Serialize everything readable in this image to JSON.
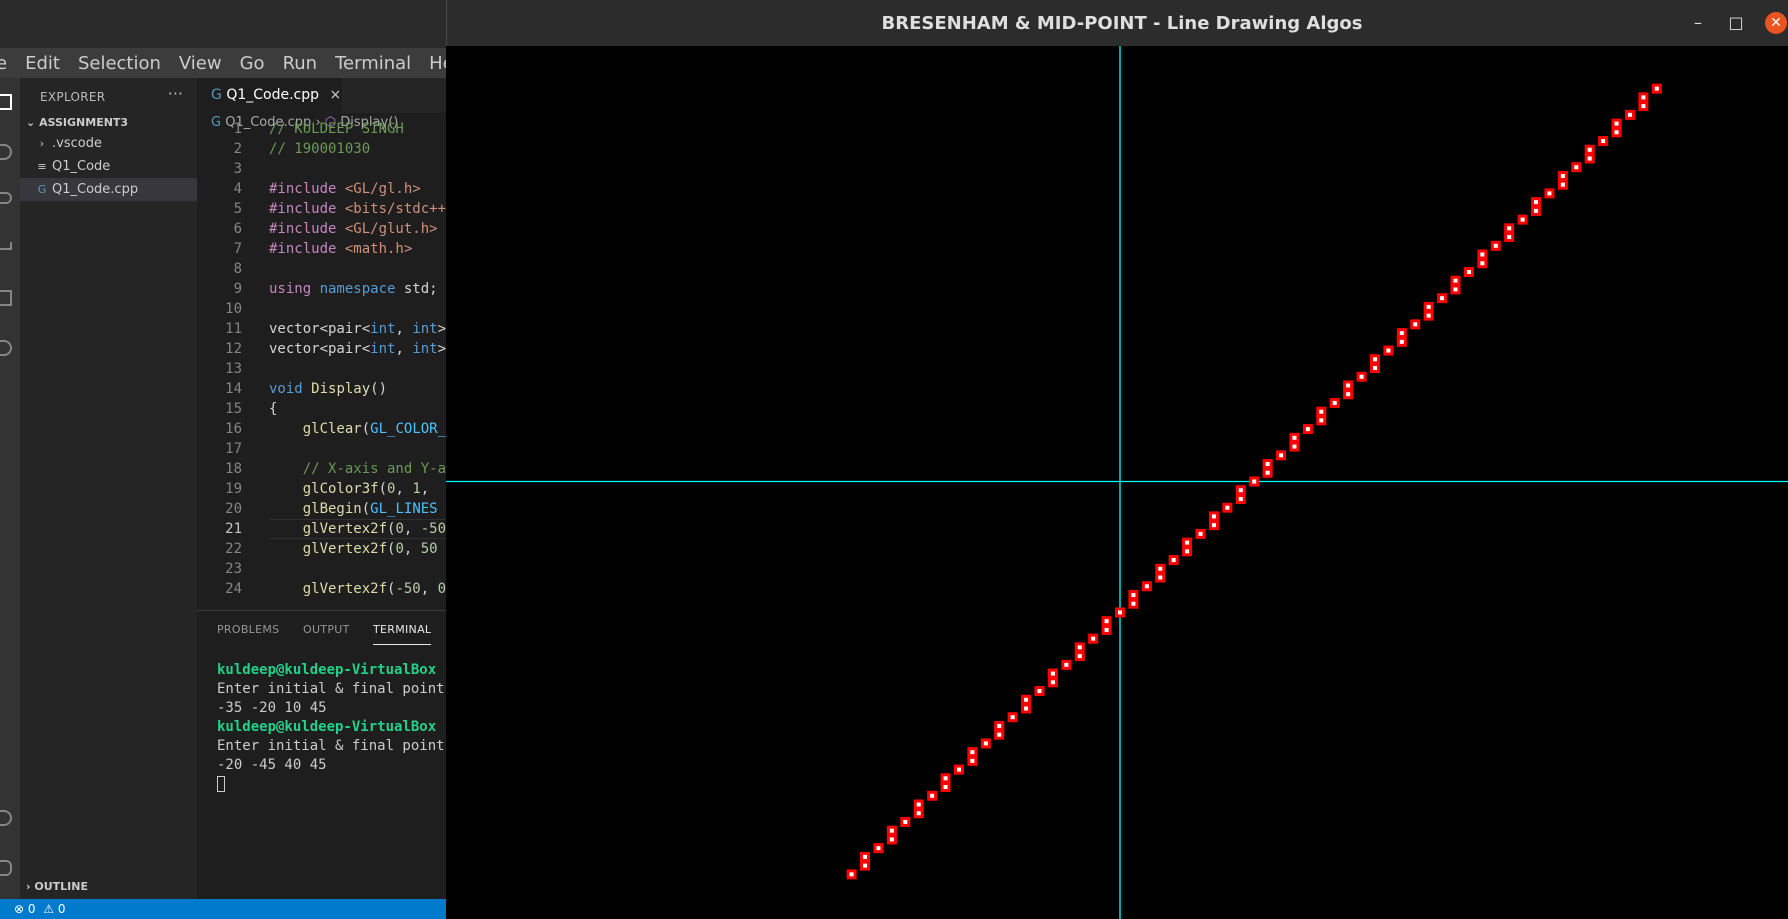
{
  "vscode": {
    "menu": [
      "e",
      "Edit",
      "Selection",
      "View",
      "Go",
      "Run",
      "Terminal",
      "Help"
    ],
    "explorer": {
      "title": "EXPLORER",
      "more": "···",
      "folder": "ASSIGNMENT3",
      "items": [
        {
          "icon": "›",
          "label": ".vscode"
        },
        {
          "icon": "≡",
          "label": "Q1_Code"
        },
        {
          "icon": "G",
          "label": "Q1_Code.cpp"
        }
      ],
      "outline": "OUTLINE"
    },
    "tab": {
      "icon": "G",
      "label": "Q1_Code.cpp",
      "close": "×"
    },
    "breadcrumb": {
      "file": "Q1_Code.cpp",
      "sep": "›",
      "symbol_icon": "⬡",
      "symbol": "Display()"
    },
    "line_numbers": [
      "1",
      "2",
      "3",
      "4",
      "5",
      "6",
      "7",
      "8",
      "9",
      "10",
      "11",
      "12",
      "13",
      "14",
      "15",
      "16",
      "17",
      "18",
      "19",
      "20",
      "21",
      "22",
      "23",
      "24"
    ],
    "code": [
      [
        {
          "t": "// KULDEEP SINGH",
          "c": "com"
        }
      ],
      [
        {
          "t": "// 190001030",
          "c": "com"
        }
      ],
      [],
      [
        {
          "t": "#include ",
          "c": "kw"
        },
        {
          "t": "<GL/gl.h>",
          "c": "str"
        }
      ],
      [
        {
          "t": "#include ",
          "c": "kw"
        },
        {
          "t": "<bits/stdc++.h>",
          "c": "str"
        }
      ],
      [
        {
          "t": "#include ",
          "c": "kw"
        },
        {
          "t": "<GL/glut.h>",
          "c": "str"
        }
      ],
      [
        {
          "t": "#include ",
          "c": "kw"
        },
        {
          "t": "<math.h>",
          "c": "str"
        }
      ],
      [],
      [
        {
          "t": "using ",
          "c": "kw"
        },
        {
          "t": "namespace ",
          "c": "typ"
        },
        {
          "t": "std;",
          "c": ""
        }
      ],
      [],
      [
        {
          "t": "vector<pair<",
          "c": ""
        },
        {
          "t": "int",
          "c": "typ"
        },
        {
          "t": ", ",
          "c": ""
        },
        {
          "t": "int",
          "c": "typ"
        },
        {
          "t": ">>",
          "c": ""
        }
      ],
      [
        {
          "t": "vector<pair<",
          "c": ""
        },
        {
          "t": "int",
          "c": "typ"
        },
        {
          "t": ", ",
          "c": ""
        },
        {
          "t": "int",
          "c": "typ"
        },
        {
          "t": ">>",
          "c": ""
        }
      ],
      [],
      [
        {
          "t": "void ",
          "c": "typ"
        },
        {
          "t": "Display",
          "c": "fn"
        },
        {
          "t": "()",
          "c": ""
        }
      ],
      [
        {
          "t": "{",
          "c": ""
        }
      ],
      [
        {
          "t": "    ",
          "c": ""
        },
        {
          "t": "glClear",
          "c": "fn"
        },
        {
          "t": "(",
          "c": ""
        },
        {
          "t": "GL_COLOR_BUFFER_BIT",
          "c": "mac"
        }
      ],
      [],
      [
        {
          "t": "    // X-axis and Y-axis",
          "c": "com"
        }
      ],
      [
        {
          "t": "    ",
          "c": ""
        },
        {
          "t": "glColor3f",
          "c": "fn"
        },
        {
          "t": "(",
          "c": ""
        },
        {
          "t": "0",
          "c": "num"
        },
        {
          "t": ", ",
          "c": ""
        },
        {
          "t": "1",
          "c": "num"
        },
        {
          "t": ", ",
          "c": ""
        }
      ],
      [
        {
          "t": "    ",
          "c": ""
        },
        {
          "t": "glBegin",
          "c": "fn"
        },
        {
          "t": "(",
          "c": ""
        },
        {
          "t": "GL_LINES",
          "c": "mac"
        }
      ],
      [
        {
          "t": "    ",
          "c": ""
        },
        {
          "t": "glVertex2f",
          "c": "fn"
        },
        {
          "t": "(",
          "c": ""
        },
        {
          "t": "0",
          "c": "num"
        },
        {
          "t": ", ",
          "c": ""
        },
        {
          "t": "-50",
          "c": "num"
        }
      ],
      [
        {
          "t": "    ",
          "c": ""
        },
        {
          "t": "glVertex2f",
          "c": "fn"
        },
        {
          "t": "(",
          "c": ""
        },
        {
          "t": "0",
          "c": "num"
        },
        {
          "t": ", ",
          "c": ""
        },
        {
          "t": "50",
          "c": "num"
        }
      ],
      [],
      [
        {
          "t": "    ",
          "c": ""
        },
        {
          "t": "glVertex2f",
          "c": "fn"
        },
        {
          "t": "(",
          "c": ""
        },
        {
          "t": "-50",
          "c": "num"
        },
        {
          "t": ", ",
          "c": ""
        },
        {
          "t": "0",
          "c": "num"
        }
      ]
    ],
    "current_line": 21,
    "panel": {
      "tabs": [
        "PROBLEMS",
        "OUTPUT",
        "TERMINAL"
      ],
      "active_tab": "TERMINAL",
      "terminal_lines": [
        {
          "prompt": true,
          "text": "kuldeep@kuldeep-VirtualBox"
        },
        {
          "prompt": false,
          "text": "Enter initial & final points"
        },
        {
          "prompt": false,
          "text": "-35 -20 10 45"
        },
        {
          "prompt": true,
          "text": "kuldeep@kuldeep-VirtualBox"
        },
        {
          "prompt": false,
          "text": "Enter initial & final points"
        },
        {
          "prompt": false,
          "text": "-20 -45 40 45"
        }
      ]
    },
    "status": {
      "errors": "⊗ 0",
      "warnings": "⚠ 0"
    }
  },
  "gl_window": {
    "title": "BRESENHAM & MID-POINT - Line Drawing Algos",
    "buttons": {
      "minimize": "–",
      "maximize": "□",
      "close": "✕"
    },
    "colors": {
      "background": "#000000",
      "axes": "#00ffff",
      "line": "#ff0000",
      "pixel_center": "#ffffff"
    },
    "world": {
      "x_range": [
        -50,
        50
      ],
      "y_range": [
        -50,
        50
      ]
    },
    "lines": [
      {
        "start": [
          -20,
          -45
        ],
        "end": [
          40,
          45
        ]
      }
    ]
  }
}
